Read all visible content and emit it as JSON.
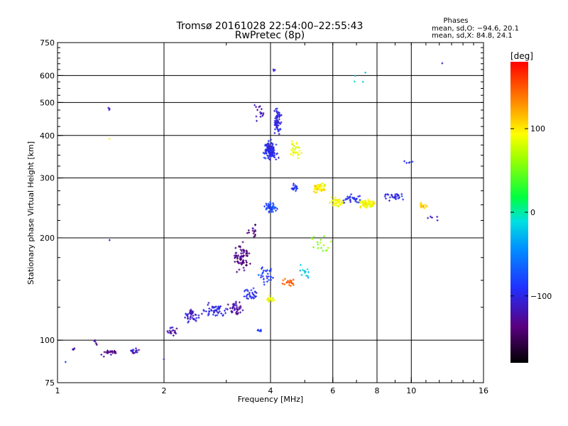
{
  "chart_data": {
    "type": "scatter",
    "title": "Tromsø 20161028 22:54:00–22:55:43",
    "subtitle": "RwPretec (8p)",
    "xlabel": "Frequency [MHz]",
    "ylabel": "Stationary phase Virtual Height [km]",
    "x_scale": "log",
    "y_scale": "log",
    "xlim": [
      1,
      16
    ],
    "ylim": [
      75,
      750
    ],
    "grid": true,
    "x_ticks": [
      1,
      2,
      4,
      6,
      8,
      10,
      16
    ],
    "y_ticks": [
      75,
      100,
      200,
      300,
      400,
      500,
      600,
      750
    ],
    "x_grid": [
      2,
      4,
      6,
      8,
      10
    ],
    "y_grid": [
      100,
      200,
      300,
      400,
      500,
      600
    ],
    "legend": {
      "title": "Phases",
      "lines": [
        "mean, sd,O: −94.6, 20.1",
        "mean, sd,X:  84.8, 24.1"
      ]
    },
    "colorbar": {
      "label": "[deg]",
      "range": [
        -180,
        180
      ],
      "ticks": [
        -100,
        0,
        100
      ],
      "colormap": "rainbow"
    },
    "clusters": [
      {
        "x": 1.4,
        "y": 92,
        "sx": 0.06,
        "sy": 0.02,
        "n": 22,
        "phase": -135
      },
      {
        "x": 1.65,
        "y": 93,
        "sx": 0.04,
        "sy": 0.015,
        "n": 16,
        "phase": -115
      },
      {
        "x": 1.1,
        "y": 95,
        "sx": 0.02,
        "sy": 0.02,
        "n": 4,
        "phase": -110
      },
      {
        "x": 1.28,
        "y": 98,
        "sx": 0.015,
        "sy": 0.02,
        "n": 5,
        "phase": -125
      },
      {
        "x": 2.1,
        "y": 106,
        "sx": 0.04,
        "sy": 0.03,
        "n": 18,
        "phase": -120
      },
      {
        "x": 2.4,
        "y": 118,
        "sx": 0.05,
        "sy": 0.04,
        "n": 40,
        "phase": -110
      },
      {
        "x": 2.8,
        "y": 122,
        "sx": 0.06,
        "sy": 0.04,
        "n": 50,
        "phase": -100
      },
      {
        "x": 3.2,
        "y": 124,
        "sx": 0.05,
        "sy": 0.04,
        "n": 40,
        "phase": -125
      },
      {
        "x": 3.5,
        "y": 135,
        "sx": 0.05,
        "sy": 0.04,
        "n": 30,
        "phase": -95
      },
      {
        "x": 3.3,
        "y": 175,
        "sx": 0.05,
        "sy": 0.08,
        "n": 70,
        "phase": -135
      },
      {
        "x": 3.55,
        "y": 210,
        "sx": 0.04,
        "sy": 0.06,
        "n": 15,
        "phase": -140
      },
      {
        "x": 3.9,
        "y": 155,
        "sx": 0.04,
        "sy": 0.05,
        "n": 30,
        "phase": -85
      },
      {
        "x": 4.0,
        "y": 132,
        "sx": 0.03,
        "sy": 0.02,
        "n": 20,
        "phase": 95
      },
      {
        "x": 4.5,
        "y": 148,
        "sx": 0.04,
        "sy": 0.03,
        "n": 22,
        "phase": 150
      },
      {
        "x": 3.7,
        "y": 107,
        "sx": 0.02,
        "sy": 0.01,
        "n": 6,
        "phase": -80
      },
      {
        "x": 4.0,
        "y": 360,
        "sx": 0.045,
        "sy": 0.05,
        "n": 140,
        "phase": -95
      },
      {
        "x": 4.2,
        "y": 440,
        "sx": 0.02,
        "sy": 0.08,
        "n": 60,
        "phase": -100
      },
      {
        "x": 3.75,
        "y": 470,
        "sx": 0.03,
        "sy": 0.05,
        "n": 15,
        "phase": -120
      },
      {
        "x": 4.7,
        "y": 360,
        "sx": 0.04,
        "sy": 0.07,
        "n": 30,
        "phase": 85
      },
      {
        "x": 4.0,
        "y": 245,
        "sx": 0.03,
        "sy": 0.04,
        "n": 45,
        "phase": -80
      },
      {
        "x": 4.7,
        "y": 280,
        "sx": 0.03,
        "sy": 0.02,
        "n": 18,
        "phase": -90
      },
      {
        "x": 5.5,
        "y": 280,
        "sx": 0.04,
        "sy": 0.03,
        "n": 50,
        "phase": 100
      },
      {
        "x": 6.2,
        "y": 255,
        "sx": 0.04,
        "sy": 0.03,
        "n": 40,
        "phase": 90
      },
      {
        "x": 7.5,
        "y": 252,
        "sx": 0.05,
        "sy": 0.025,
        "n": 70,
        "phase": 95
      },
      {
        "x": 6.8,
        "y": 260,
        "sx": 0.06,
        "sy": 0.03,
        "n": 30,
        "phase": -95
      },
      {
        "x": 9.0,
        "y": 265,
        "sx": 0.07,
        "sy": 0.03,
        "n": 30,
        "phase": -100
      },
      {
        "x": 10.8,
        "y": 248,
        "sx": 0.03,
        "sy": 0.02,
        "n": 15,
        "phase": 110
      },
      {
        "x": 5.6,
        "y": 190,
        "sx": 0.06,
        "sy": 0.06,
        "n": 18,
        "phase": 60
      },
      {
        "x": 5.0,
        "y": 160,
        "sx": 0.04,
        "sy": 0.06,
        "n": 12,
        "phase": -20
      },
      {
        "x": 7.0,
        "y": 600,
        "sx": 0.05,
        "sy": 0.05,
        "n": 4,
        "phase": -20
      },
      {
        "x": 9.8,
        "y": 330,
        "sx": 0.03,
        "sy": 0.03,
        "n": 5,
        "phase": -90
      },
      {
        "x": 11.5,
        "y": 230,
        "sx": 0.04,
        "sy": 0.03,
        "n": 5,
        "phase": -110
      },
      {
        "x": 1.4,
        "y": 480,
        "sx": 0.005,
        "sy": 0.01,
        "n": 3,
        "phase": -120
      },
      {
        "x": 1.4,
        "y": 390,
        "sx": 0.005,
        "sy": 0.01,
        "n": 1,
        "phase": 100
      },
      {
        "x": 1.4,
        "y": 195,
        "sx": 0.005,
        "sy": 0.01,
        "n": 1,
        "phase": -130
      },
      {
        "x": 2.0,
        "y": 88,
        "sx": 0.01,
        "sy": 0.005,
        "n": 1,
        "phase": -110
      },
      {
        "x": 1.05,
        "y": 86,
        "sx": 0.005,
        "sy": 0.005,
        "n": 1,
        "phase": -80
      },
      {
        "x": 12.3,
        "y": 650,
        "sx": 0.005,
        "sy": 0.005,
        "n": 1,
        "phase": -110
      },
      {
        "x": 4.1,
        "y": 620,
        "sx": 0.01,
        "sy": 0.01,
        "n": 3,
        "phase": -110
      }
    ]
  }
}
